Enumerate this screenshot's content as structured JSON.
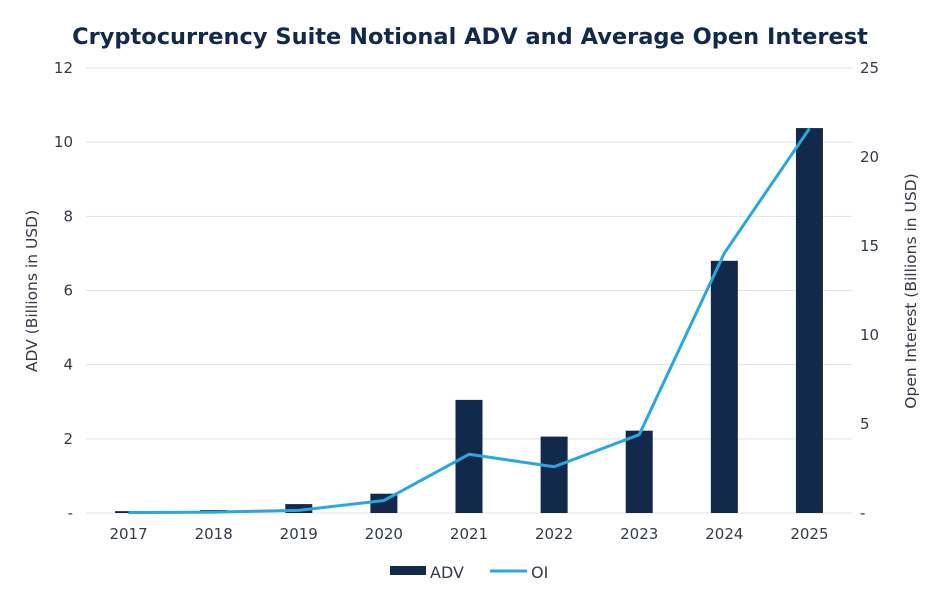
{
  "chart_data": {
    "type": "bar",
    "title": "Cryptocurrency Suite Notional ADV and Average Open Interest",
    "categories": [
      "2017",
      "2018",
      "2019",
      "2020",
      "2021",
      "2022",
      "2023",
      "2024",
      "2025"
    ],
    "series": [
      {
        "name": "ADV",
        "type": "bar",
        "axis": "left",
        "color": "#13294b",
        "values": [
          0.05,
          0.08,
          0.24,
          0.52,
          3.05,
          2.06,
          2.22,
          6.8,
          10.38
        ]
      },
      {
        "name": "OI",
        "type": "line",
        "axis": "right",
        "color": "#2aa7e0",
        "values": [
          0.02,
          0.05,
          0.15,
          0.7,
          3.3,
          2.6,
          4.4,
          14.6,
          21.6
        ]
      }
    ],
    "ylabel": "ADV (Billions in USD)",
    "y2label": "Open Interest (Billions in USD)",
    "xlabel": "",
    "ylim": [
      0,
      12
    ],
    "y2lim": [
      0,
      25
    ],
    "yticks": [
      "-",
      "2",
      "4",
      "6",
      "8",
      "10",
      "12"
    ],
    "ytick_values": [
      0,
      2,
      4,
      6,
      8,
      10,
      12
    ],
    "y2ticks": [
      "-",
      "5",
      "10",
      "15",
      "20",
      "25"
    ],
    "y2tick_values": [
      0,
      5,
      10,
      15,
      20,
      25
    ],
    "grid": true,
    "legend": {
      "placement": "bottom-center",
      "entries": [
        "ADV",
        "OI"
      ]
    }
  }
}
